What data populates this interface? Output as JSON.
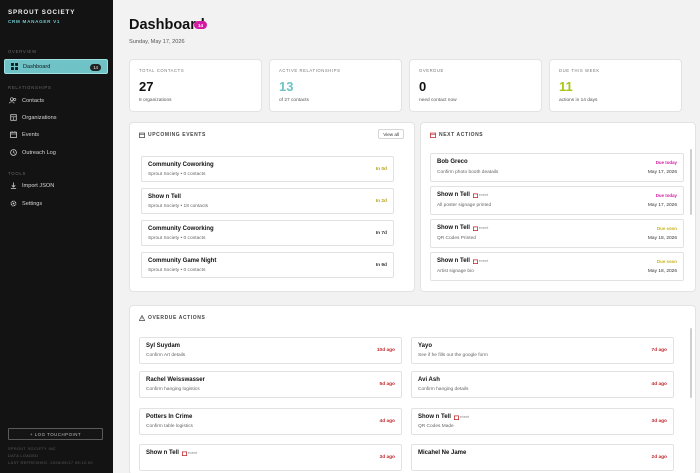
{
  "sidebar": {
    "brand_name": "SPROUT SOCIETY",
    "brand_sub": "CRM MANAGER V1",
    "overview_label": "OVERVIEW",
    "relationships_label": "RELATIONSHIPS",
    "tools_label": "TOOLS",
    "items": [
      {
        "label": "Dashboard",
        "badge": "14",
        "icon": "grid-icon",
        "active": true
      },
      {
        "label": "Contacts",
        "icon": "people-icon"
      },
      {
        "label": "Organizations",
        "icon": "building-icon"
      },
      {
        "label": "Events",
        "icon": "calendar-icon"
      },
      {
        "label": "Outreach Log",
        "icon": "log-icon"
      },
      {
        "label": "Import JSON",
        "icon": "import-icon"
      },
      {
        "label": "Settings",
        "icon": "gear-icon"
      }
    ],
    "log_touchpoint_label": "+ LOG TOUCHPOINT",
    "footer_lines": [
      "SPROUT SOCIETY INC",
      "DATA LOADED",
      "LAST REFRESHED, 2026/05/17 09:12:00"
    ]
  },
  "header": {
    "title": "Dashboard",
    "badge": "14",
    "date": "Sunday, May 17, 2026"
  },
  "stats": [
    {
      "label": "TOTAL CONTACTS",
      "value": "27",
      "sub": "8 organizations",
      "color": "#111111"
    },
    {
      "label": "ACTIVE RELATIONSHIPS",
      "value": "13",
      "sub": "of 27 contacts",
      "color": "#6fc2c6"
    },
    {
      "label": "OVERDUE",
      "value": "0",
      "sub": "need contact now",
      "color": "#111111"
    },
    {
      "label": "DUE THIS WEEK",
      "value": "11",
      "sub": "actions in 14 days",
      "color": "#a9c51b"
    }
  ],
  "upcoming_events": {
    "title": "UPCOMING EVENTS",
    "view_all": "View all",
    "items": [
      {
        "title": "Community Coworking",
        "sub": "Sprout Society • 0 contacts",
        "when": "In 0d",
        "color": "#b3a21a"
      },
      {
        "title": "Show n Tell",
        "sub": "Sprout Society • 18 contacts",
        "when": "In 2d",
        "color": "#b3a21a"
      },
      {
        "title": "Community Coworking",
        "sub": "Sprout Society • 0 contacts",
        "when": "In 7d",
        "color": "#333333"
      },
      {
        "title": "Community Game Night",
        "sub": "Sprout Society • 0 contacts",
        "when": "In 9d",
        "color": "#333333"
      }
    ]
  },
  "next_actions": {
    "title": "NEXT ACTIONS",
    "event_tag": "event",
    "items": [
      {
        "title": "Bob Greco",
        "sub": "Confirm photo booth deatails",
        "status": "Due today",
        "status_color": "#d31ca2",
        "date": "May 17, 2026",
        "is_event": false
      },
      {
        "title": "Show n Tell",
        "sub": "All poster signage printed",
        "status": "Due today",
        "status_color": "#d31ca2",
        "date": "May 17, 2026",
        "is_event": true
      },
      {
        "title": "Show n Tell",
        "sub": "QR Codes Printed",
        "status": "Due soon",
        "status_color": "#c7b21a",
        "date": "May 18, 2026",
        "is_event": true
      },
      {
        "title": "Show n Tell",
        "sub": "Artist signage bio",
        "status": "Due soon",
        "status_color": "#c7b21a",
        "date": "May 18, 2026",
        "is_event": true
      }
    ]
  },
  "overdue_actions": {
    "title": "OVERDUE ACTIONS",
    "event_tag": "event",
    "left": [
      {
        "title": "Syl Suydam",
        "sub": "Confirm Art details",
        "ago": "10d ago",
        "is_event": false
      },
      {
        "title": "Rachel Weisswasser",
        "sub": "Confirm hanging logistics",
        "ago": "5d ago",
        "is_event": false
      },
      {
        "title": "Potters In Crime",
        "sub": "Confirm table logistics",
        "ago": "4d ago",
        "is_event": false
      },
      {
        "title": "Show n Tell",
        "sub": "",
        "ago": "3d ago",
        "is_event": true
      }
    ],
    "right": [
      {
        "title": "Yayo",
        "sub": "See if he fills out the google form",
        "ago": "7d ago",
        "is_event": false
      },
      {
        "title": "Avi Ash",
        "sub": "Confirm hanging details",
        "ago": "4d ago",
        "is_event": false
      },
      {
        "title": "Show n Tell",
        "sub": "QR Codes Made",
        "ago": "3d ago",
        "is_event": true
      },
      {
        "title": "Micahel Ne Jame",
        "sub": "",
        "ago": "2d ago",
        "is_event": false
      }
    ]
  }
}
